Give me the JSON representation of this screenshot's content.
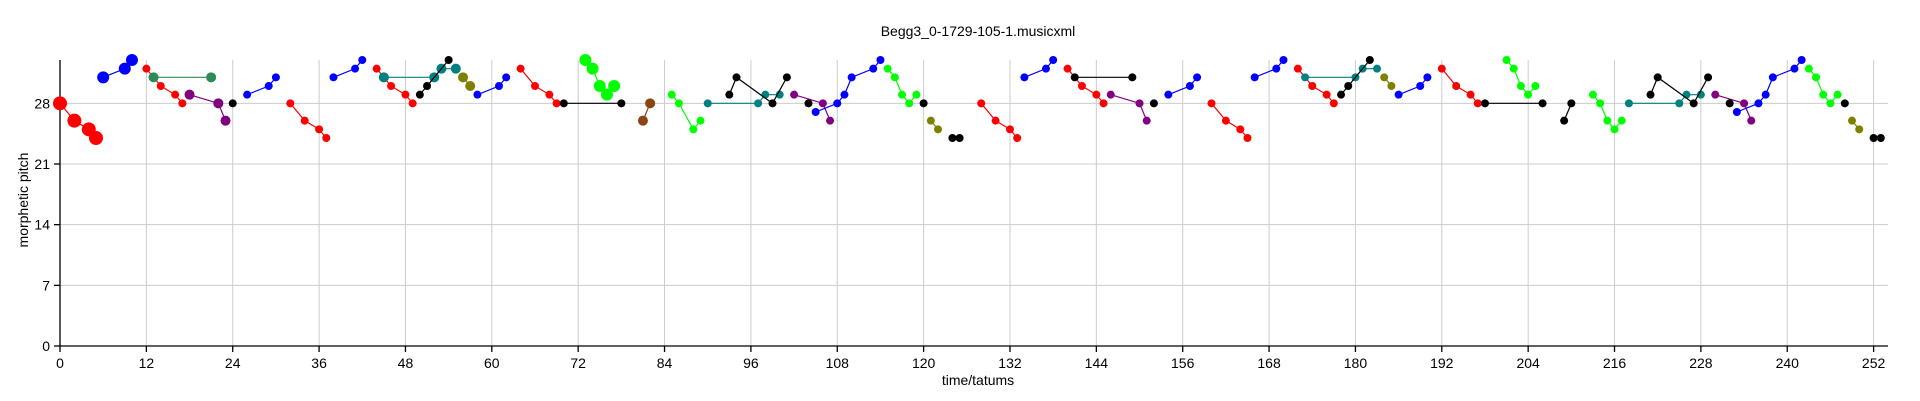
{
  "chart_data": {
    "type": "scatter",
    "title": "Begg3_0-1729-105-1.musicxml",
    "xlabel": "time/tatums",
    "ylabel": "morphetic pitch",
    "xlim": [
      0,
      254
    ],
    "ylim": [
      0,
      33
    ],
    "xticks": [
      0,
      12,
      24,
      36,
      48,
      60,
      72,
      84,
      96,
      108,
      120,
      132,
      144,
      156,
      168,
      180,
      192,
      204,
      216,
      228,
      240,
      252
    ],
    "yticks": [
      0,
      7,
      14,
      21,
      28
    ],
    "grid": true,
    "colors": {
      "red": "#ff0000",
      "blue": "#0000ff",
      "black": "#000000",
      "teal": "#008080",
      "purple": "#800080",
      "olive": "#808000",
      "green": "#00ff00",
      "darkgreen": "#2e8b57",
      "brown": "#8b4513"
    },
    "series": [
      {
        "color": "red",
        "size": 7,
        "points": [
          [
            0,
            28
          ],
          [
            2,
            26
          ],
          [
            4,
            25
          ],
          [
            5,
            24
          ]
        ]
      },
      {
        "color": "blue",
        "size": 6,
        "points": [
          [
            6,
            31
          ],
          [
            9,
            32
          ],
          [
            10,
            33
          ]
        ]
      },
      {
        "color": "red",
        "size": 4,
        "points": [
          [
            12,
            32
          ],
          [
            14,
            30
          ],
          [
            16,
            29
          ],
          [
            17,
            28
          ]
        ]
      },
      {
        "color": "darkgreen",
        "size": 5,
        "points": [
          [
            13,
            31
          ],
          [
            21,
            31
          ]
        ]
      },
      {
        "color": "purple",
        "size": 5,
        "points": [
          [
            18,
            29
          ],
          [
            22,
            28
          ],
          [
            23,
            26
          ]
        ]
      },
      {
        "color": "black",
        "size": 4,
        "points": [
          [
            24,
            28
          ]
        ]
      },
      {
        "color": "blue",
        "size": 4,
        "points": [
          [
            26,
            29
          ],
          [
            29,
            30
          ],
          [
            30,
            31
          ]
        ]
      },
      {
        "color": "red",
        "size": 4,
        "points": [
          [
            32,
            28
          ],
          [
            34,
            26
          ],
          [
            36,
            25
          ],
          [
            37,
            24
          ]
        ]
      },
      {
        "color": "blue",
        "size": 4,
        "points": [
          [
            38,
            31
          ],
          [
            41,
            32
          ],
          [
            42,
            33
          ]
        ]
      },
      {
        "color": "red",
        "size": 4,
        "points": [
          [
            44,
            32
          ],
          [
            46,
            30
          ],
          [
            48,
            29
          ],
          [
            49,
            28
          ]
        ]
      },
      {
        "color": "teal",
        "size": 5,
        "points": [
          [
            45,
            31
          ],
          [
            52,
            31
          ],
          [
            53,
            32
          ],
          [
            55,
            32
          ]
        ]
      },
      {
        "color": "black",
        "size": 4,
        "points": [
          [
            50,
            29
          ],
          [
            51,
            30
          ],
          [
            54,
            33
          ]
        ]
      },
      {
        "color": "olive",
        "size": 5,
        "points": [
          [
            56,
            31
          ],
          [
            57,
            30
          ]
        ]
      },
      {
        "color": "blue",
        "size": 4,
        "points": [
          [
            58,
            29
          ],
          [
            61,
            30
          ],
          [
            62,
            31
          ]
        ]
      },
      {
        "color": "red",
        "size": 4,
        "points": [
          [
            64,
            32
          ],
          [
            66,
            30
          ],
          [
            68,
            29
          ],
          [
            69,
            28
          ]
        ]
      },
      {
        "color": "black",
        "size": 4,
        "points": [
          [
            70,
            28
          ],
          [
            78,
            28
          ]
        ]
      },
      {
        "color": "green",
        "size": 6,
        "points": [
          [
            73,
            33
          ],
          [
            74,
            32
          ],
          [
            75,
            30
          ],
          [
            76,
            29
          ],
          [
            77,
            30
          ]
        ]
      },
      {
        "color": "brown",
        "size": 5,
        "points": [
          [
            81,
            26
          ],
          [
            82,
            28
          ]
        ]
      },
      {
        "color": "green",
        "size": 4,
        "points": [
          [
            85,
            29
          ],
          [
            86,
            28
          ],
          [
            88,
            25
          ],
          [
            89,
            26
          ]
        ]
      },
      {
        "color": "teal",
        "size": 4,
        "points": [
          [
            90,
            28
          ],
          [
            97,
            28
          ],
          [
            98,
            29
          ],
          [
            100,
            29
          ]
        ]
      },
      {
        "color": "black",
        "size": 4,
        "points": [
          [
            93,
            29
          ],
          [
            94,
            31
          ],
          [
            99,
            28
          ],
          [
            101,
            31
          ]
        ]
      },
      {
        "color": "purple",
        "size": 4,
        "points": [
          [
            102,
            29
          ],
          [
            106,
            28
          ],
          [
            107,
            26
          ]
        ]
      },
      {
        "color": "black",
        "size": 4,
        "points": [
          [
            104,
            28
          ]
        ]
      },
      {
        "color": "blue",
        "size": 4,
        "points": [
          [
            105,
            27
          ],
          [
            108,
            28
          ],
          [
            109,
            29
          ],
          [
            110,
            31
          ],
          [
            113,
            32
          ],
          [
            114,
            33
          ]
        ]
      },
      {
        "color": "green",
        "size": 4,
        "points": [
          [
            115,
            32
          ],
          [
            116,
            31
          ],
          [
            117,
            29
          ],
          [
            118,
            28
          ],
          [
            119,
            29
          ]
        ]
      },
      {
        "color": "black",
        "size": 4,
        "points": [
          [
            120,
            28
          ]
        ]
      },
      {
        "color": "olive",
        "size": 4,
        "points": [
          [
            121,
            26
          ],
          [
            122,
            25
          ]
        ]
      },
      {
        "color": "black",
        "size": 4,
        "points": [
          [
            124,
            24
          ],
          [
            125,
            24
          ]
        ]
      },
      {
        "color": "red",
        "size": 4,
        "points": [
          [
            128,
            28
          ],
          [
            130,
            26
          ],
          [
            132,
            25
          ],
          [
            133,
            24
          ]
        ]
      },
      {
        "color": "blue",
        "size": 4,
        "points": [
          [
            134,
            31
          ],
          [
            137,
            32
          ],
          [
            138,
            33
          ]
        ]
      },
      {
        "color": "red",
        "size": 4,
        "points": [
          [
            140,
            32
          ],
          [
            142,
            30
          ],
          [
            144,
            29
          ],
          [
            145,
            28
          ]
        ]
      },
      {
        "color": "black",
        "size": 4,
        "points": [
          [
            141,
            31
          ],
          [
            149,
            31
          ]
        ]
      },
      {
        "color": "purple",
        "size": 4,
        "points": [
          [
            146,
            29
          ],
          [
            150,
            28
          ],
          [
            151,
            26
          ]
        ]
      },
      {
        "color": "black",
        "size": 4,
        "points": [
          [
            152,
            28
          ]
        ]
      },
      {
        "color": "blue",
        "size": 4,
        "points": [
          [
            154,
            29
          ],
          [
            157,
            30
          ],
          [
            158,
            31
          ]
        ]
      },
      {
        "color": "red",
        "size": 4,
        "points": [
          [
            160,
            28
          ],
          [
            162,
            26
          ],
          [
            164,
            25
          ],
          [
            165,
            24
          ]
        ]
      },
      {
        "color": "blue",
        "size": 4,
        "points": [
          [
            166,
            31
          ],
          [
            169,
            32
          ],
          [
            170,
            33
          ]
        ]
      },
      {
        "color": "red",
        "size": 4,
        "points": [
          [
            172,
            32
          ],
          [
            174,
            30
          ],
          [
            176,
            29
          ],
          [
            177,
            28
          ]
        ]
      },
      {
        "color": "teal",
        "size": 4,
        "points": [
          [
            173,
            31
          ],
          [
            180,
            31
          ],
          [
            181,
            32
          ],
          [
            183,
            32
          ]
        ]
      },
      {
        "color": "black",
        "size": 4,
        "points": [
          [
            178,
            29
          ],
          [
            179,
            30
          ],
          [
            182,
            33
          ]
        ]
      },
      {
        "color": "olive",
        "size": 4,
        "points": [
          [
            184,
            31
          ],
          [
            185,
            30
          ]
        ]
      },
      {
        "color": "blue",
        "size": 4,
        "points": [
          [
            186,
            29
          ],
          [
            189,
            30
          ],
          [
            190,
            31
          ]
        ]
      },
      {
        "color": "red",
        "size": 4,
        "points": [
          [
            192,
            32
          ],
          [
            194,
            30
          ],
          [
            196,
            29
          ],
          [
            197,
            28
          ]
        ]
      },
      {
        "color": "black",
        "size": 4,
        "points": [
          [
            198,
            28
          ],
          [
            206,
            28
          ]
        ]
      },
      {
        "color": "green",
        "size": 4,
        "points": [
          [
            201,
            33
          ],
          [
            202,
            32
          ],
          [
            203,
            30
          ],
          [
            204,
            29
          ],
          [
            205,
            30
          ]
        ]
      },
      {
        "color": "black",
        "size": 4,
        "points": [
          [
            209,
            26
          ],
          [
            210,
            28
          ]
        ]
      },
      {
        "color": "green",
        "size": 4,
        "points": [
          [
            213,
            29
          ],
          [
            214,
            28
          ],
          [
            215,
            26
          ],
          [
            216,
            25
          ],
          [
            217,
            26
          ]
        ]
      },
      {
        "color": "teal",
        "size": 4,
        "points": [
          [
            218,
            28
          ],
          [
            225,
            28
          ],
          [
            226,
            29
          ],
          [
            228,
            29
          ]
        ]
      },
      {
        "color": "black",
        "size": 4,
        "points": [
          [
            221,
            29
          ],
          [
            222,
            31
          ],
          [
            227,
            28
          ],
          [
            229,
            31
          ]
        ]
      },
      {
        "color": "purple",
        "size": 4,
        "points": [
          [
            230,
            29
          ],
          [
            234,
            28
          ],
          [
            235,
            26
          ]
        ]
      },
      {
        "color": "black",
        "size": 4,
        "points": [
          [
            232,
            28
          ]
        ]
      },
      {
        "color": "blue",
        "size": 4,
        "points": [
          [
            233,
            27
          ],
          [
            236,
            28
          ],
          [
            237,
            29
          ],
          [
            238,
            31
          ],
          [
            241,
            32
          ],
          [
            242,
            33
          ]
        ]
      },
      {
        "color": "green",
        "size": 4,
        "points": [
          [
            243,
            32
          ],
          [
            244,
            31
          ],
          [
            245,
            29
          ],
          [
            246,
            28
          ],
          [
            247,
            29
          ]
        ]
      },
      {
        "color": "black",
        "size": 4,
        "points": [
          [
            248,
            28
          ]
        ]
      },
      {
        "color": "olive",
        "size": 4,
        "points": [
          [
            249,
            26
          ],
          [
            250,
            25
          ]
        ]
      },
      {
        "color": "black",
        "size": 4,
        "points": [
          [
            252,
            24
          ],
          [
            253,
            24
          ]
        ]
      }
    ]
  }
}
